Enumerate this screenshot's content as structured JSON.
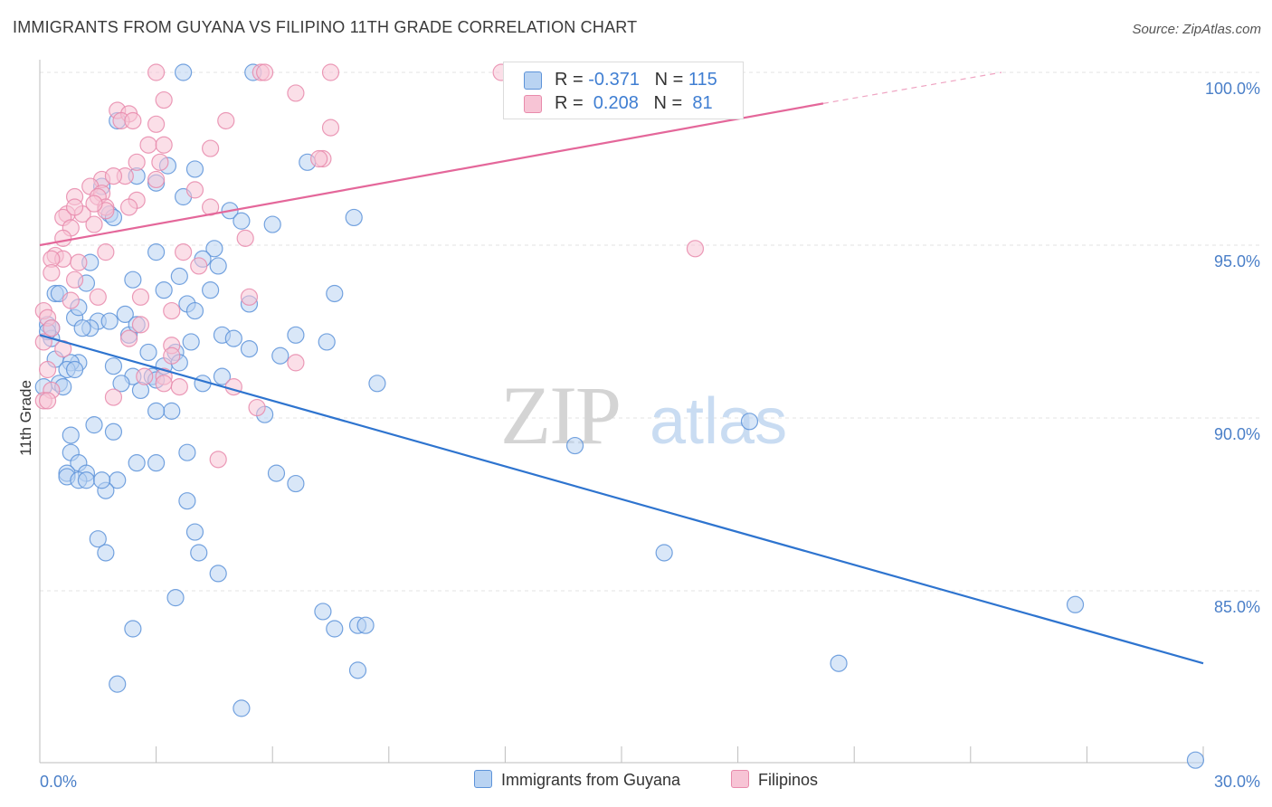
{
  "header": {
    "title": "IMMIGRANTS FROM GUYANA VS FILIPINO 11TH GRADE CORRELATION CHART",
    "source": "Source: ZipAtlas.com"
  },
  "watermark": {
    "zip": "ZIP",
    "atlas": "atlas"
  },
  "legend_top": {
    "row1": {
      "r_label": "R = ",
      "r_value": "-0.371",
      "n_label": "N = ",
      "n_value": "115"
    },
    "row2": {
      "r_label": "R = ",
      "r_value": " 0.208",
      "n_label": "N = ",
      "n_value": " 81"
    }
  },
  "colors": {
    "blue_fill": "#b9d3f2",
    "blue_stroke": "#5d93d9",
    "blue_line": "#2e74cf",
    "pink_fill": "#f7c4d5",
    "pink_stroke": "#e88aab",
    "pink_line": "#e4679a",
    "tick_text": "#4a7fc8",
    "grid": "#e3e3e3"
  },
  "chart_data": {
    "type": "scatter",
    "ylabel": "11th Grade",
    "xlim": [
      0,
      30
    ],
    "ylim": [
      80,
      100.5
    ],
    "x_tick_labels": [
      "0.0%",
      "30.0%"
    ],
    "y_ticks": [
      85,
      90,
      95,
      100
    ],
    "y_tick_labels": [
      "85.0%",
      "90.0%",
      "95.0%",
      "100.0%"
    ],
    "grid": "horizontal dashed",
    "legend_position": "top-center and bottom",
    "series": [
      {
        "name": "Immigrants from Guyana",
        "color": "blue",
        "r": -0.371,
        "n": 115,
        "trend": {
          "x": [
            0,
            30
          ],
          "y": [
            92.4,
            82.9
          ]
        },
        "points": [
          [
            3.7,
            100
          ],
          [
            5.5,
            100
          ],
          [
            2.0,
            98.6
          ],
          [
            6.9,
            97.4
          ],
          [
            3.3,
            97.3
          ],
          [
            4.0,
            97.2
          ],
          [
            2.5,
            97.0
          ],
          [
            3.0,
            96.8
          ],
          [
            1.6,
            96.7
          ],
          [
            3.7,
            96.4
          ],
          [
            4.9,
            96.0
          ],
          [
            1.8,
            95.9
          ],
          [
            1.9,
            95.8
          ],
          [
            8.1,
            95.8
          ],
          [
            5.2,
            95.7
          ],
          [
            6.0,
            95.6
          ],
          [
            4.5,
            94.9
          ],
          [
            3.0,
            94.8
          ],
          [
            4.2,
            94.6
          ],
          [
            1.3,
            94.5
          ],
          [
            4.6,
            94.4
          ],
          [
            3.6,
            94.1
          ],
          [
            2.4,
            94.0
          ],
          [
            1.2,
            93.9
          ],
          [
            3.2,
            93.7
          ],
          [
            0.4,
            93.6
          ],
          [
            0.5,
            93.6
          ],
          [
            7.6,
            93.6
          ],
          [
            5.4,
            93.3
          ],
          [
            3.8,
            93.3
          ],
          [
            4.0,
            93.1
          ],
          [
            2.2,
            93.0
          ],
          [
            0.9,
            92.9
          ],
          [
            1.5,
            92.8
          ],
          [
            1.8,
            92.8
          ],
          [
            0.2,
            92.7
          ],
          [
            0.3,
            92.6
          ],
          [
            1.3,
            92.6
          ],
          [
            1.1,
            92.6
          ],
          [
            2.3,
            92.4
          ],
          [
            4.7,
            92.4
          ],
          [
            5.0,
            92.3
          ],
          [
            6.6,
            92.4
          ],
          [
            7.4,
            92.2
          ],
          [
            0.3,
            92.3
          ],
          [
            5.4,
            92.0
          ],
          [
            2.8,
            91.9
          ],
          [
            3.5,
            91.9
          ],
          [
            6.2,
            91.8
          ],
          [
            0.4,
            91.7
          ],
          [
            1.0,
            91.6
          ],
          [
            0.8,
            91.6
          ],
          [
            1.9,
            91.5
          ],
          [
            3.2,
            91.5
          ],
          [
            0.7,
            91.4
          ],
          [
            0.9,
            91.4
          ],
          [
            2.4,
            91.2
          ],
          [
            4.7,
            91.2
          ],
          [
            2.9,
            91.2
          ],
          [
            3.0,
            91.1
          ],
          [
            4.2,
            91.0
          ],
          [
            8.7,
            91.0
          ],
          [
            0.5,
            91.0
          ],
          [
            0.6,
            90.9
          ],
          [
            2.6,
            90.8
          ],
          [
            0.1,
            90.9
          ],
          [
            3.4,
            90.2
          ],
          [
            3.0,
            90.2
          ],
          [
            5.8,
            90.1
          ],
          [
            18.3,
            89.9
          ],
          [
            1.4,
            89.8
          ],
          [
            1.9,
            89.6
          ],
          [
            0.8,
            89.5
          ],
          [
            13.8,
            89.2
          ],
          [
            3.8,
            89.0
          ],
          [
            0.8,
            89.0
          ],
          [
            1.0,
            88.7
          ],
          [
            2.5,
            88.7
          ],
          [
            3.0,
            88.7
          ],
          [
            6.1,
            88.4
          ],
          [
            0.7,
            88.4
          ],
          [
            1.2,
            88.4
          ],
          [
            0.7,
            88.3
          ],
          [
            1.0,
            88.2
          ],
          [
            1.2,
            88.2
          ],
          [
            2.0,
            88.2
          ],
          [
            6.6,
            88.1
          ],
          [
            1.7,
            87.9
          ],
          [
            3.8,
            87.6
          ],
          [
            4.0,
            86.7
          ],
          [
            1.5,
            86.5
          ],
          [
            1.7,
            86.1
          ],
          [
            4.1,
            86.1
          ],
          [
            16.1,
            86.1
          ],
          [
            4.6,
            85.5
          ],
          [
            3.5,
            84.8
          ],
          [
            26.7,
            84.6
          ],
          [
            7.3,
            84.4
          ],
          [
            8.2,
            84.0
          ],
          [
            8.4,
            84.0
          ],
          [
            2.4,
            83.9
          ],
          [
            7.6,
            83.9
          ],
          [
            20.6,
            82.9
          ],
          [
            8.2,
            82.7
          ],
          [
            2.0,
            82.3
          ],
          [
            5.2,
            81.6
          ],
          [
            29.8,
            80.1
          ],
          [
            0.2,
            92.5
          ],
          [
            1.0,
            93.2
          ],
          [
            2.5,
            92.7
          ],
          [
            3.9,
            92.2
          ],
          [
            2.1,
            91.0
          ],
          [
            4.4,
            93.7
          ],
          [
            3.6,
            91.6
          ],
          [
            1.6,
            88.2
          ]
        ]
      },
      {
        "name": "Filipinos",
        "color": "pink",
        "r": 0.208,
        "n": 81,
        "trend": {
          "x": [
            0,
            20.2
          ],
          "y": [
            95.0,
            99.1
          ],
          "dashed_ext": {
            "x": [
              20.2,
              24.8
            ],
            "y": [
              99.1,
              100.0
            ]
          }
        },
        "points": [
          [
            3.0,
            100
          ],
          [
            5.7,
            100
          ],
          [
            5.8,
            100
          ],
          [
            7.5,
            100
          ],
          [
            11.9,
            100
          ],
          [
            6.6,
            99.4
          ],
          [
            3.2,
            99.2
          ],
          [
            2.0,
            98.9
          ],
          [
            2.3,
            98.8
          ],
          [
            2.1,
            98.6
          ],
          [
            4.8,
            98.6
          ],
          [
            3.0,
            98.5
          ],
          [
            7.5,
            98.4
          ],
          [
            2.8,
            97.9
          ],
          [
            3.2,
            97.9
          ],
          [
            4.4,
            97.8
          ],
          [
            7.3,
            97.5
          ],
          [
            7.2,
            97.5
          ],
          [
            3.1,
            97.4
          ],
          [
            2.5,
            97.4
          ],
          [
            2.2,
            97.0
          ],
          [
            3.0,
            96.9
          ],
          [
            1.6,
            96.9
          ],
          [
            1.3,
            96.7
          ],
          [
            4.0,
            96.6
          ],
          [
            1.6,
            96.5
          ],
          [
            1.5,
            96.4
          ],
          [
            0.9,
            96.4
          ],
          [
            2.5,
            96.3
          ],
          [
            2.3,
            96.1
          ],
          [
            1.7,
            96.1
          ],
          [
            4.4,
            96.1
          ],
          [
            1.7,
            96.0
          ],
          [
            1.1,
            95.9
          ],
          [
            0.7,
            95.9
          ],
          [
            0.6,
            95.8
          ],
          [
            1.4,
            95.6
          ],
          [
            0.8,
            95.5
          ],
          [
            5.3,
            95.2
          ],
          [
            0.6,
            95.2
          ],
          [
            16.9,
            94.9
          ],
          [
            1.7,
            94.8
          ],
          [
            3.7,
            94.8
          ],
          [
            0.4,
            94.7
          ],
          [
            0.6,
            94.6
          ],
          [
            0.3,
            94.6
          ],
          [
            4.1,
            94.4
          ],
          [
            0.3,
            94.2
          ],
          [
            0.9,
            94.0
          ],
          [
            1.5,
            93.5
          ],
          [
            2.6,
            93.5
          ],
          [
            5.4,
            93.5
          ],
          [
            0.8,
            93.4
          ],
          [
            3.4,
            93.1
          ],
          [
            0.1,
            93.1
          ],
          [
            0.2,
            92.9
          ],
          [
            2.6,
            92.7
          ],
          [
            0.3,
            92.6
          ],
          [
            2.3,
            92.3
          ],
          [
            0.1,
            92.2
          ],
          [
            3.4,
            92.1
          ],
          [
            3.4,
            91.8
          ],
          [
            6.6,
            91.6
          ],
          [
            0.2,
            91.4
          ],
          [
            2.7,
            91.2
          ],
          [
            3.2,
            91.2
          ],
          [
            3.2,
            91.0
          ],
          [
            3.6,
            90.9
          ],
          [
            5.0,
            90.9
          ],
          [
            0.3,
            90.8
          ],
          [
            0.1,
            90.5
          ],
          [
            1.9,
            90.6
          ],
          [
            0.2,
            90.5
          ],
          [
            5.6,
            90.3
          ],
          [
            4.6,
            88.8
          ],
          [
            0.6,
            92.0
          ],
          [
            1.0,
            94.5
          ],
          [
            1.9,
            97.0
          ],
          [
            0.9,
            96.1
          ],
          [
            2.4,
            98.6
          ],
          [
            1.4,
            96.2
          ]
        ]
      }
    ]
  },
  "bottom_legend": {
    "series1": "Immigrants from Guyana",
    "series2": "Filipinos"
  }
}
